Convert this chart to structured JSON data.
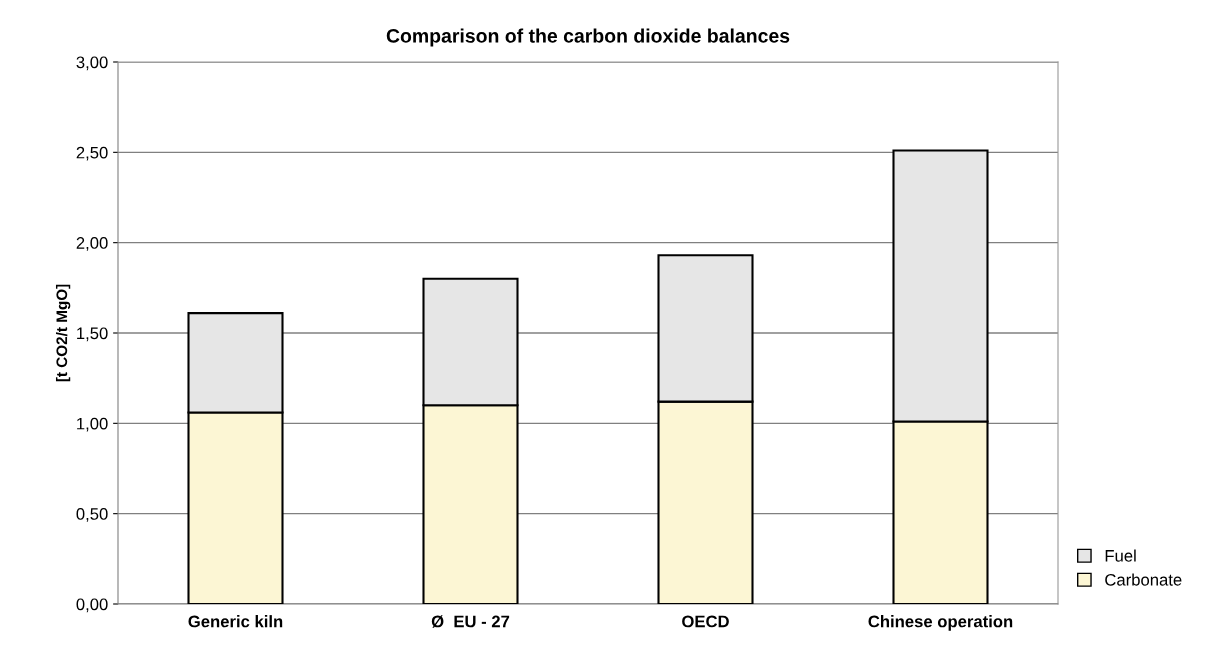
{
  "chart_data": {
    "type": "bar",
    "title": "Comparison of the carbon dioxide balances",
    "ylabel": "[t CO2/t MgO]",
    "categories": [
      "Generic kiln",
      "Ø  EU - 27",
      "OECD",
      "Chinese operation"
    ],
    "series": [
      {
        "name": "Carbonate",
        "color": "#fcf6d4",
        "values": [
          1.06,
          1.1,
          1.12,
          1.01
        ]
      },
      {
        "name": "Fuel",
        "color": "#e6e6e6",
        "values": [
          0.55,
          0.7,
          0.81,
          1.5
        ]
      }
    ],
    "stacked": true,
    "ylim": [
      0,
      3
    ],
    "yticks": [
      {
        "value": 0,
        "label": "0,00"
      },
      {
        "value": 0.5,
        "label": "0,50"
      },
      {
        "value": 1,
        "label": "1,00"
      },
      {
        "value": 1.5,
        "label": "1,50"
      },
      {
        "value": 2,
        "label": "2,00"
      },
      {
        "value": 2.5,
        "label": "2,50"
      },
      {
        "value": 3,
        "label": "3,00"
      }
    ],
    "grid": "y",
    "legend": "bottom right"
  }
}
